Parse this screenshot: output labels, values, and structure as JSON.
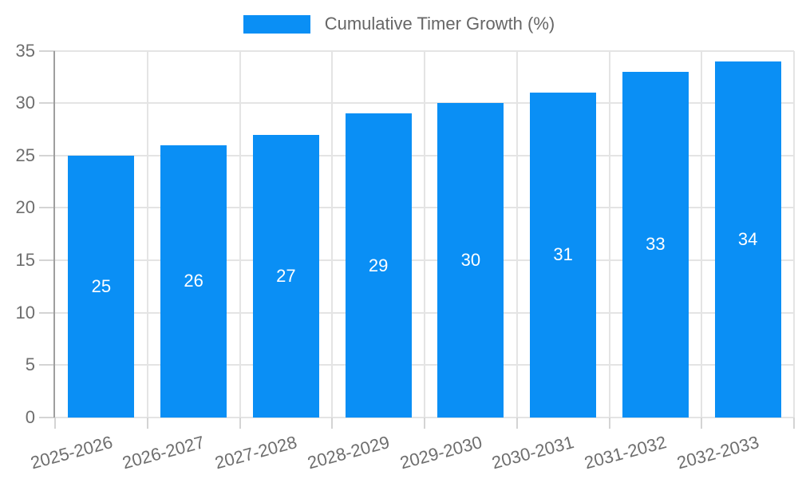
{
  "chart_data": {
    "type": "bar",
    "legend_label": "Cumulative Timer Growth (%)",
    "legend_position": "top",
    "categories": [
      "2025-2026",
      "2026-2027",
      "2027-2028",
      "2028-2029",
      "2029-2030",
      "2030-2031",
      "2031-2032",
      "2032-2033"
    ],
    "values": [
      25,
      26,
      27,
      29,
      30,
      31,
      33,
      34
    ],
    "value_labels_shown": true,
    "yticks": [
      0,
      5,
      10,
      15,
      20,
      25,
      30,
      35
    ],
    "ylim": [
      0,
      35
    ],
    "xlabel": "",
    "ylabel": "",
    "x_label_rotation_deg": -15,
    "grid": true,
    "colors": {
      "bar": "#0a8ff5",
      "value_label": "#ffffff",
      "gridline": "#e4e4e4",
      "axis_line": "#9e9e9e",
      "tick_mark": "#d4d4d4",
      "axis_text": "#6e6e6e",
      "legend_text": "#666666"
    }
  }
}
